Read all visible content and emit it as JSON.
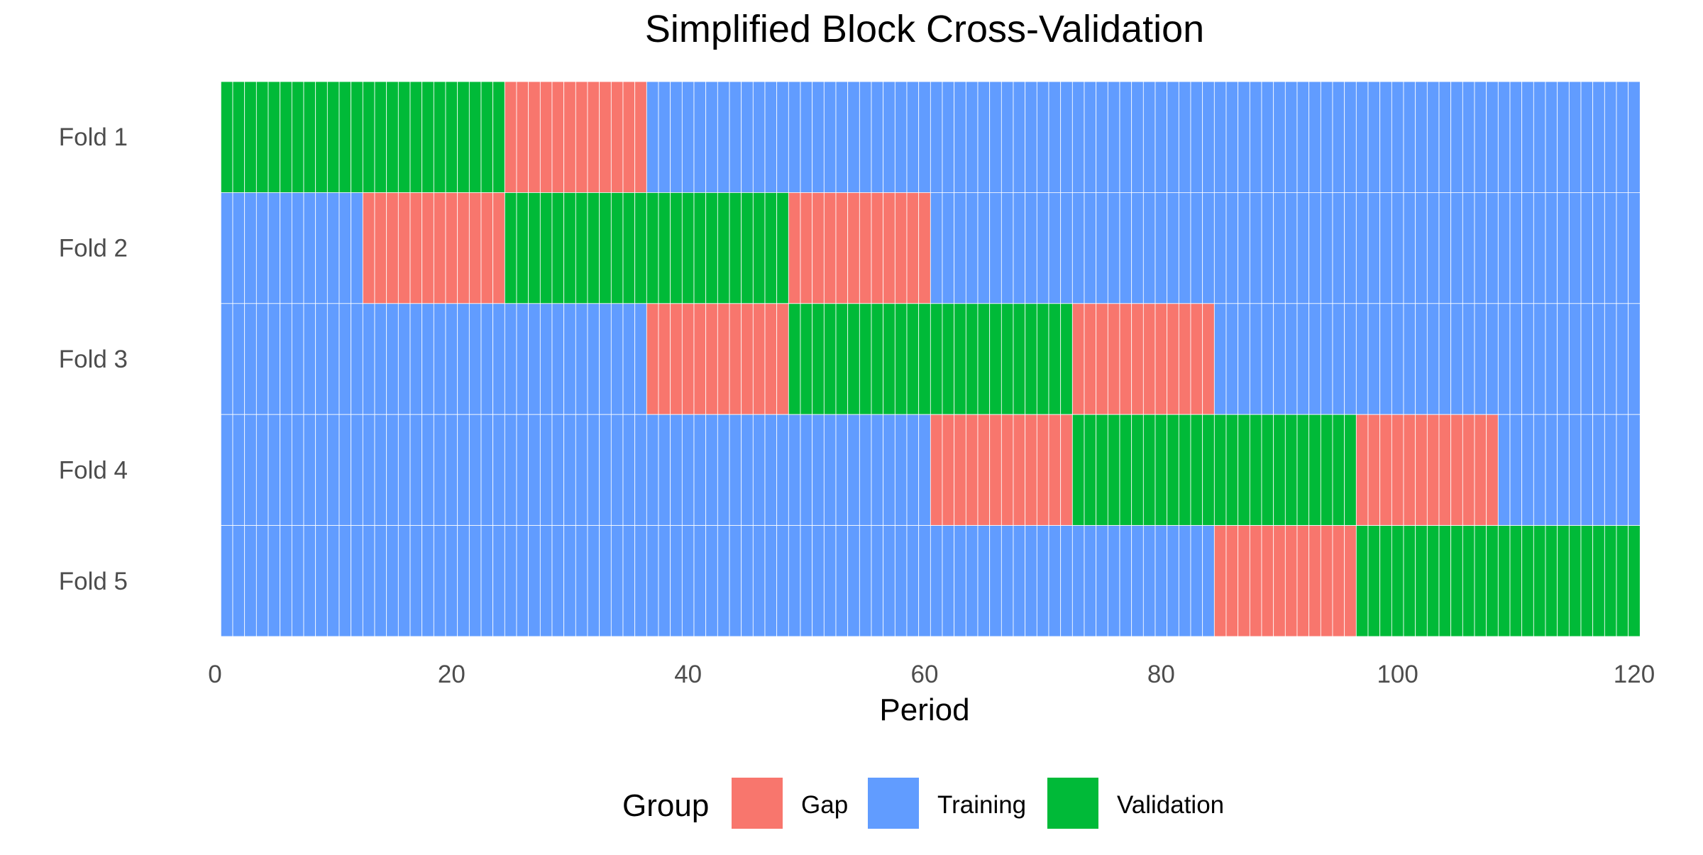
{
  "chart_data": {
    "type": "heatmap",
    "title": "Simplified Block Cross-Validation",
    "xlabel": "Period",
    "ylabel": "",
    "xlim": [
      0,
      120
    ],
    "x_ticks": [
      0,
      20,
      40,
      60,
      80,
      100,
      120
    ],
    "periods": {
      "start": 1,
      "end": 120
    },
    "folds": [
      {
        "label": "Fold 1",
        "segments": [
          {
            "group": "Validation",
            "from": 1,
            "to": 24
          },
          {
            "group": "Gap",
            "from": 25,
            "to": 36
          },
          {
            "group": "Training",
            "from": 37,
            "to": 120
          }
        ]
      },
      {
        "label": "Fold 2",
        "segments": [
          {
            "group": "Training",
            "from": 1,
            "to": 12
          },
          {
            "group": "Gap",
            "from": 13,
            "to": 24
          },
          {
            "group": "Validation",
            "from": 25,
            "to": 48
          },
          {
            "group": "Gap",
            "from": 49,
            "to": 60
          },
          {
            "group": "Training",
            "from": 61,
            "to": 120
          }
        ]
      },
      {
        "label": "Fold 3",
        "segments": [
          {
            "group": "Training",
            "from": 1,
            "to": 36
          },
          {
            "group": "Gap",
            "from": 37,
            "to": 48
          },
          {
            "group": "Validation",
            "from": 49,
            "to": 72
          },
          {
            "group": "Gap",
            "from": 73,
            "to": 84
          },
          {
            "group": "Training",
            "from": 85,
            "to": 120
          }
        ]
      },
      {
        "label": "Fold 4",
        "segments": [
          {
            "group": "Training",
            "from": 1,
            "to": 60
          },
          {
            "group": "Gap",
            "from": 61,
            "to": 72
          },
          {
            "group": "Validation",
            "from": 73,
            "to": 96
          },
          {
            "group": "Gap",
            "from": 97,
            "to": 108
          },
          {
            "group": "Training",
            "from": 109,
            "to": 120
          }
        ]
      },
      {
        "label": "Fold 5",
        "segments": [
          {
            "group": "Training",
            "from": 1,
            "to": 84
          },
          {
            "group": "Gap",
            "from": 85,
            "to": 96
          },
          {
            "group": "Validation",
            "from": 97,
            "to": 120
          }
        ]
      }
    ],
    "legend": {
      "title": "Group",
      "position": "bottom",
      "items": [
        {
          "name": "Gap",
          "color": "#F8766D"
        },
        {
          "name": "Training",
          "color": "#619CFF"
        },
        {
          "name": "Validation",
          "color": "#00BA38"
        }
      ]
    },
    "grid": false
  }
}
